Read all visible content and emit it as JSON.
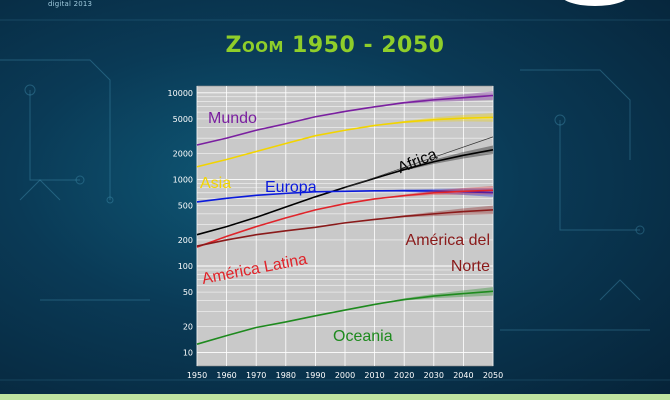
{
  "header": {
    "brand": "digital 2013",
    "title": "Zoom 1950 - 2050"
  },
  "chart_data": {
    "type": "line",
    "yscale": "log",
    "xlim": [
      1950,
      2050
    ],
    "ylim": [
      7,
      12000
    ],
    "grid": true,
    "x_ticks": [
      1950,
      1960,
      1970,
      1980,
      1990,
      2000,
      2010,
      2020,
      2030,
      2040,
      2050
    ],
    "y_ticks": [
      10,
      20,
      50,
      100,
      200,
      500,
      1000,
      2000,
      5000,
      10000
    ],
    "y_tick_labels": [
      "10",
      "20",
      "50",
      "100",
      "200",
      "500",
      "1000",
      "2000",
      "5000",
      "10000"
    ],
    "series": [
      {
        "name": "Mundo",
        "color": "#7a1fa0",
        "label_lines": [
          "Mundo"
        ],
        "x": [
          1950,
          1960,
          1970,
          1980,
          1990,
          2000,
          2010,
          2020,
          2030,
          2040,
          2050
        ],
        "y": [
          2500,
          3000,
          3700,
          4400,
          5300,
          6100,
          6900,
          7700,
          8300,
          8800,
          9300
        ]
      },
      {
        "name": "Asia",
        "color": "#f2d400",
        "label_lines": [
          "Asia"
        ],
        "x": [
          1950,
          1960,
          1970,
          1980,
          1990,
          2000,
          2010,
          2020,
          2030,
          2040,
          2050
        ],
        "y": [
          1400,
          1700,
          2100,
          2600,
          3200,
          3700,
          4200,
          4600,
          4900,
          5100,
          5200
        ]
      },
      {
        "name": "Africa",
        "color": "#000000",
        "label_lines": [
          "Africa"
        ],
        "x": [
          1950,
          1960,
          1970,
          1980,
          1990,
          2000,
          2010,
          2020,
          2030,
          2040,
          2050
        ],
        "y": [
          230,
          285,
          365,
          480,
          630,
          810,
          1030,
          1300,
          1600,
          1900,
          2200
        ]
      },
      {
        "name": "Europa",
        "color": "#0a1adc",
        "label_lines": [
          "Europa"
        ],
        "x": [
          1950,
          1960,
          1970,
          1980,
          1990,
          2000,
          2010,
          2020,
          2030,
          2040,
          2050
        ],
        "y": [
          550,
          605,
          655,
          690,
          720,
          730,
          738,
          742,
          735,
          720,
          705
        ]
      },
      {
        "name": "América Latina",
        "color": "#e0242a",
        "label_lines": [
          "América Latina"
        ],
        "x": [
          1950,
          1960,
          1970,
          1980,
          1990,
          2000,
          2010,
          2020,
          2030,
          2040,
          2050
        ],
        "y": [
          165,
          220,
          285,
          360,
          445,
          525,
          595,
          650,
          700,
          730,
          750
        ]
      },
      {
        "name": "América del Norte",
        "color": "#8a1a1a",
        "label_lines": [
          "América del",
          "Norte"
        ],
        "x": [
          1950,
          1960,
          1970,
          1980,
          1990,
          2000,
          2010,
          2020,
          2030,
          2040,
          2050
        ],
        "y": [
          170,
          200,
          230,
          255,
          280,
          315,
          345,
          375,
          400,
          425,
          445
        ]
      },
      {
        "name": "Oceania",
        "color": "#1e8a1e",
        "label_lines": [
          "Oceania"
        ],
        "x": [
          1950,
          1960,
          1970,
          1980,
          1990,
          2000,
          2010,
          2020,
          2030,
          2040,
          2050
        ],
        "y": [
          12.5,
          15.7,
          19.5,
          22.6,
          26.6,
          31,
          36,
          41,
          45,
          48,
          51
        ]
      }
    ]
  }
}
